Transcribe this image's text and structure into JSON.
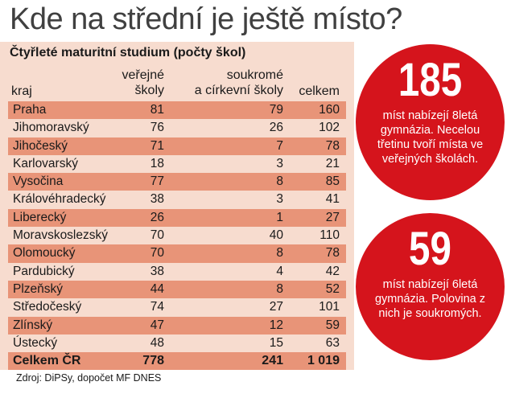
{
  "title": "Kde na střední je ještě místo?",
  "chart_data": {
    "type": "table",
    "subtitle": "Čtyřleté maturitní studium (počty škol)",
    "columns": {
      "kraj": "kraj",
      "verejne_line1": "veřejné",
      "verejne_line2": "školy",
      "soukrome_line1": "soukromé",
      "soukrome_line2": "a církevní školy",
      "celkem": "celkem"
    },
    "rows": [
      {
        "kraj": "Praha",
        "verejne": "81",
        "soukrome": "79",
        "celkem": "160"
      },
      {
        "kraj": "Jihomoravský",
        "verejne": "76",
        "soukrome": "26",
        "celkem": "102"
      },
      {
        "kraj": "Jihočeský",
        "verejne": "71",
        "soukrome": "7",
        "celkem": "78"
      },
      {
        "kraj": "Karlovarský",
        "verejne": "18",
        "soukrome": "3",
        "celkem": "21"
      },
      {
        "kraj": "Vysočina",
        "verejne": "77",
        "soukrome": "8",
        "celkem": "85"
      },
      {
        "kraj": "Královéhradecký",
        "verejne": "38",
        "soukrome": "3",
        "celkem": "41"
      },
      {
        "kraj": "Liberecký",
        "verejne": "26",
        "soukrome": "1",
        "celkem": "27"
      },
      {
        "kraj": "Moravskoslezský",
        "verejne": "70",
        "soukrome": "40",
        "celkem": "110"
      },
      {
        "kraj": "Olomoucký",
        "verejne": "70",
        "soukrome": "8",
        "celkem": "78"
      },
      {
        "kraj": "Pardubický",
        "verejne": "38",
        "soukrome": "4",
        "celkem": "42"
      },
      {
        "kraj": "Plzeňský",
        "verejne": "44",
        "soukrome": "8",
        "celkem": "52"
      },
      {
        "kraj": "Středočeský",
        "verejne": "74",
        "soukrome": "27",
        "celkem": "101"
      },
      {
        "kraj": "Zlínský",
        "verejne": "47",
        "soukrome": "12",
        "celkem": "59"
      },
      {
        "kraj": "Ústecký",
        "verejne": "48",
        "soukrome": "15",
        "celkem": "63"
      }
    ],
    "total": {
      "kraj": "Celkem ČR",
      "verejne": "778",
      "soukrome": "241",
      "celkem": "1 019"
    }
  },
  "source": "Zdroj: DiPSy, dopočet MF DNES",
  "callouts": [
    {
      "number": "185",
      "text": "míst nabízejí 8letá gymnázia. Necelou třetinu tvoří místa ve veřejných školách."
    },
    {
      "number": "59",
      "text": "míst nabízejí 6letá gymnázia. Polovina z nich je soukromých."
    }
  ],
  "colors": {
    "panel": "#f7dccf",
    "row_shade": "#e89478",
    "bubble": "#d5141c"
  }
}
